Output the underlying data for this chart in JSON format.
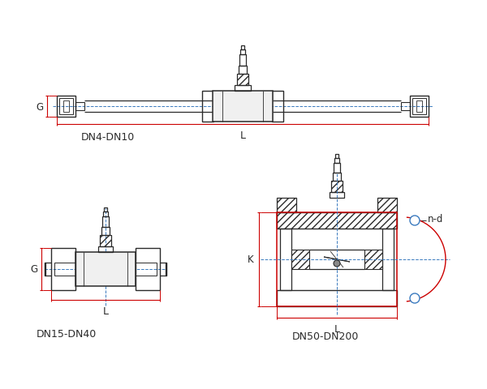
{
  "bg_color": "#ffffff",
  "line_color": "#2a2a2a",
  "red_color": "#cc0000",
  "blue_color": "#3a7abf",
  "label_DN4": "DN4-DN10",
  "label_DN15": "DN15-DN40",
  "label_DN50": "DN50-DN200",
  "label_G": "G",
  "label_L": "L",
  "label_K": "K",
  "label_nd": "n-d"
}
